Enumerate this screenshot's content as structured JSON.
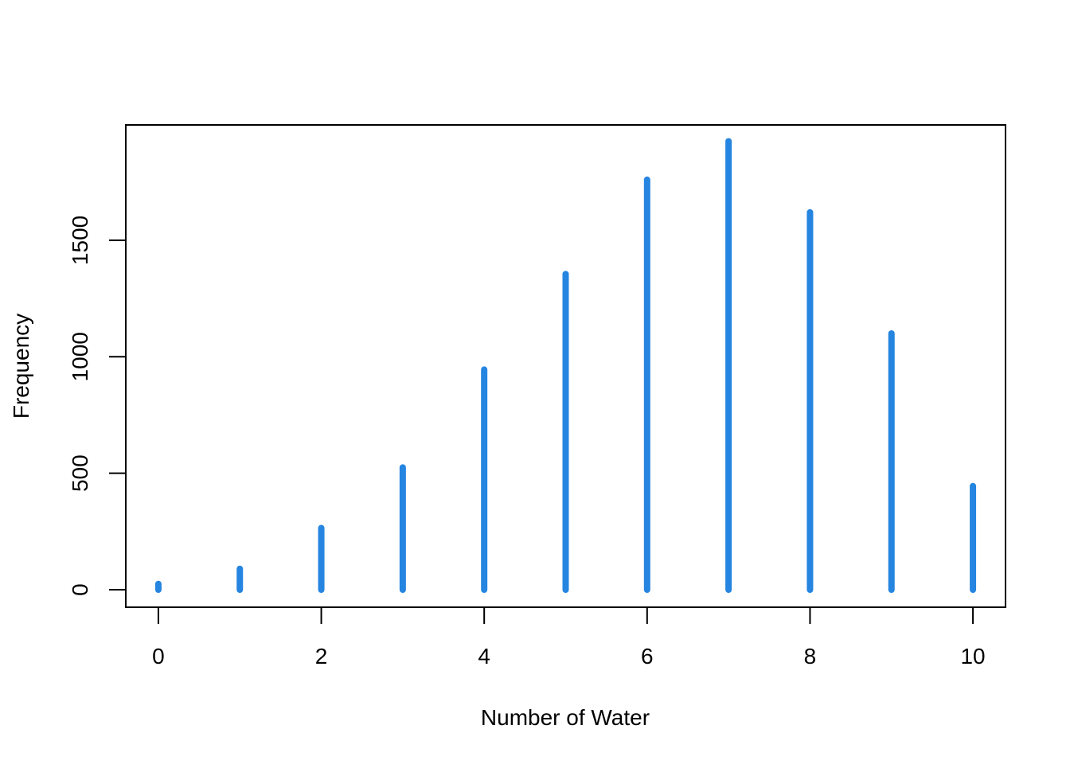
{
  "chart_data": {
    "type": "bar",
    "style": "vertical-lines",
    "xlabel": "Number of Water",
    "ylabel": "Frequency",
    "x": [
      0,
      1,
      2,
      3,
      4,
      5,
      6,
      7,
      8,
      9,
      10
    ],
    "values": [
      25,
      90,
      265,
      525,
      945,
      1355,
      1760,
      1925,
      1620,
      1100,
      445
    ],
    "xlim": [
      -0.4,
      10.4
    ],
    "ylim": [
      -75,
      1995
    ],
    "xticks": [
      "0",
      "2",
      "4",
      "6",
      "8",
      "10"
    ],
    "yticks": [
      "0",
      "500",
      "1000",
      "1500"
    ],
    "grid": false,
    "color": "#2585e0"
  }
}
